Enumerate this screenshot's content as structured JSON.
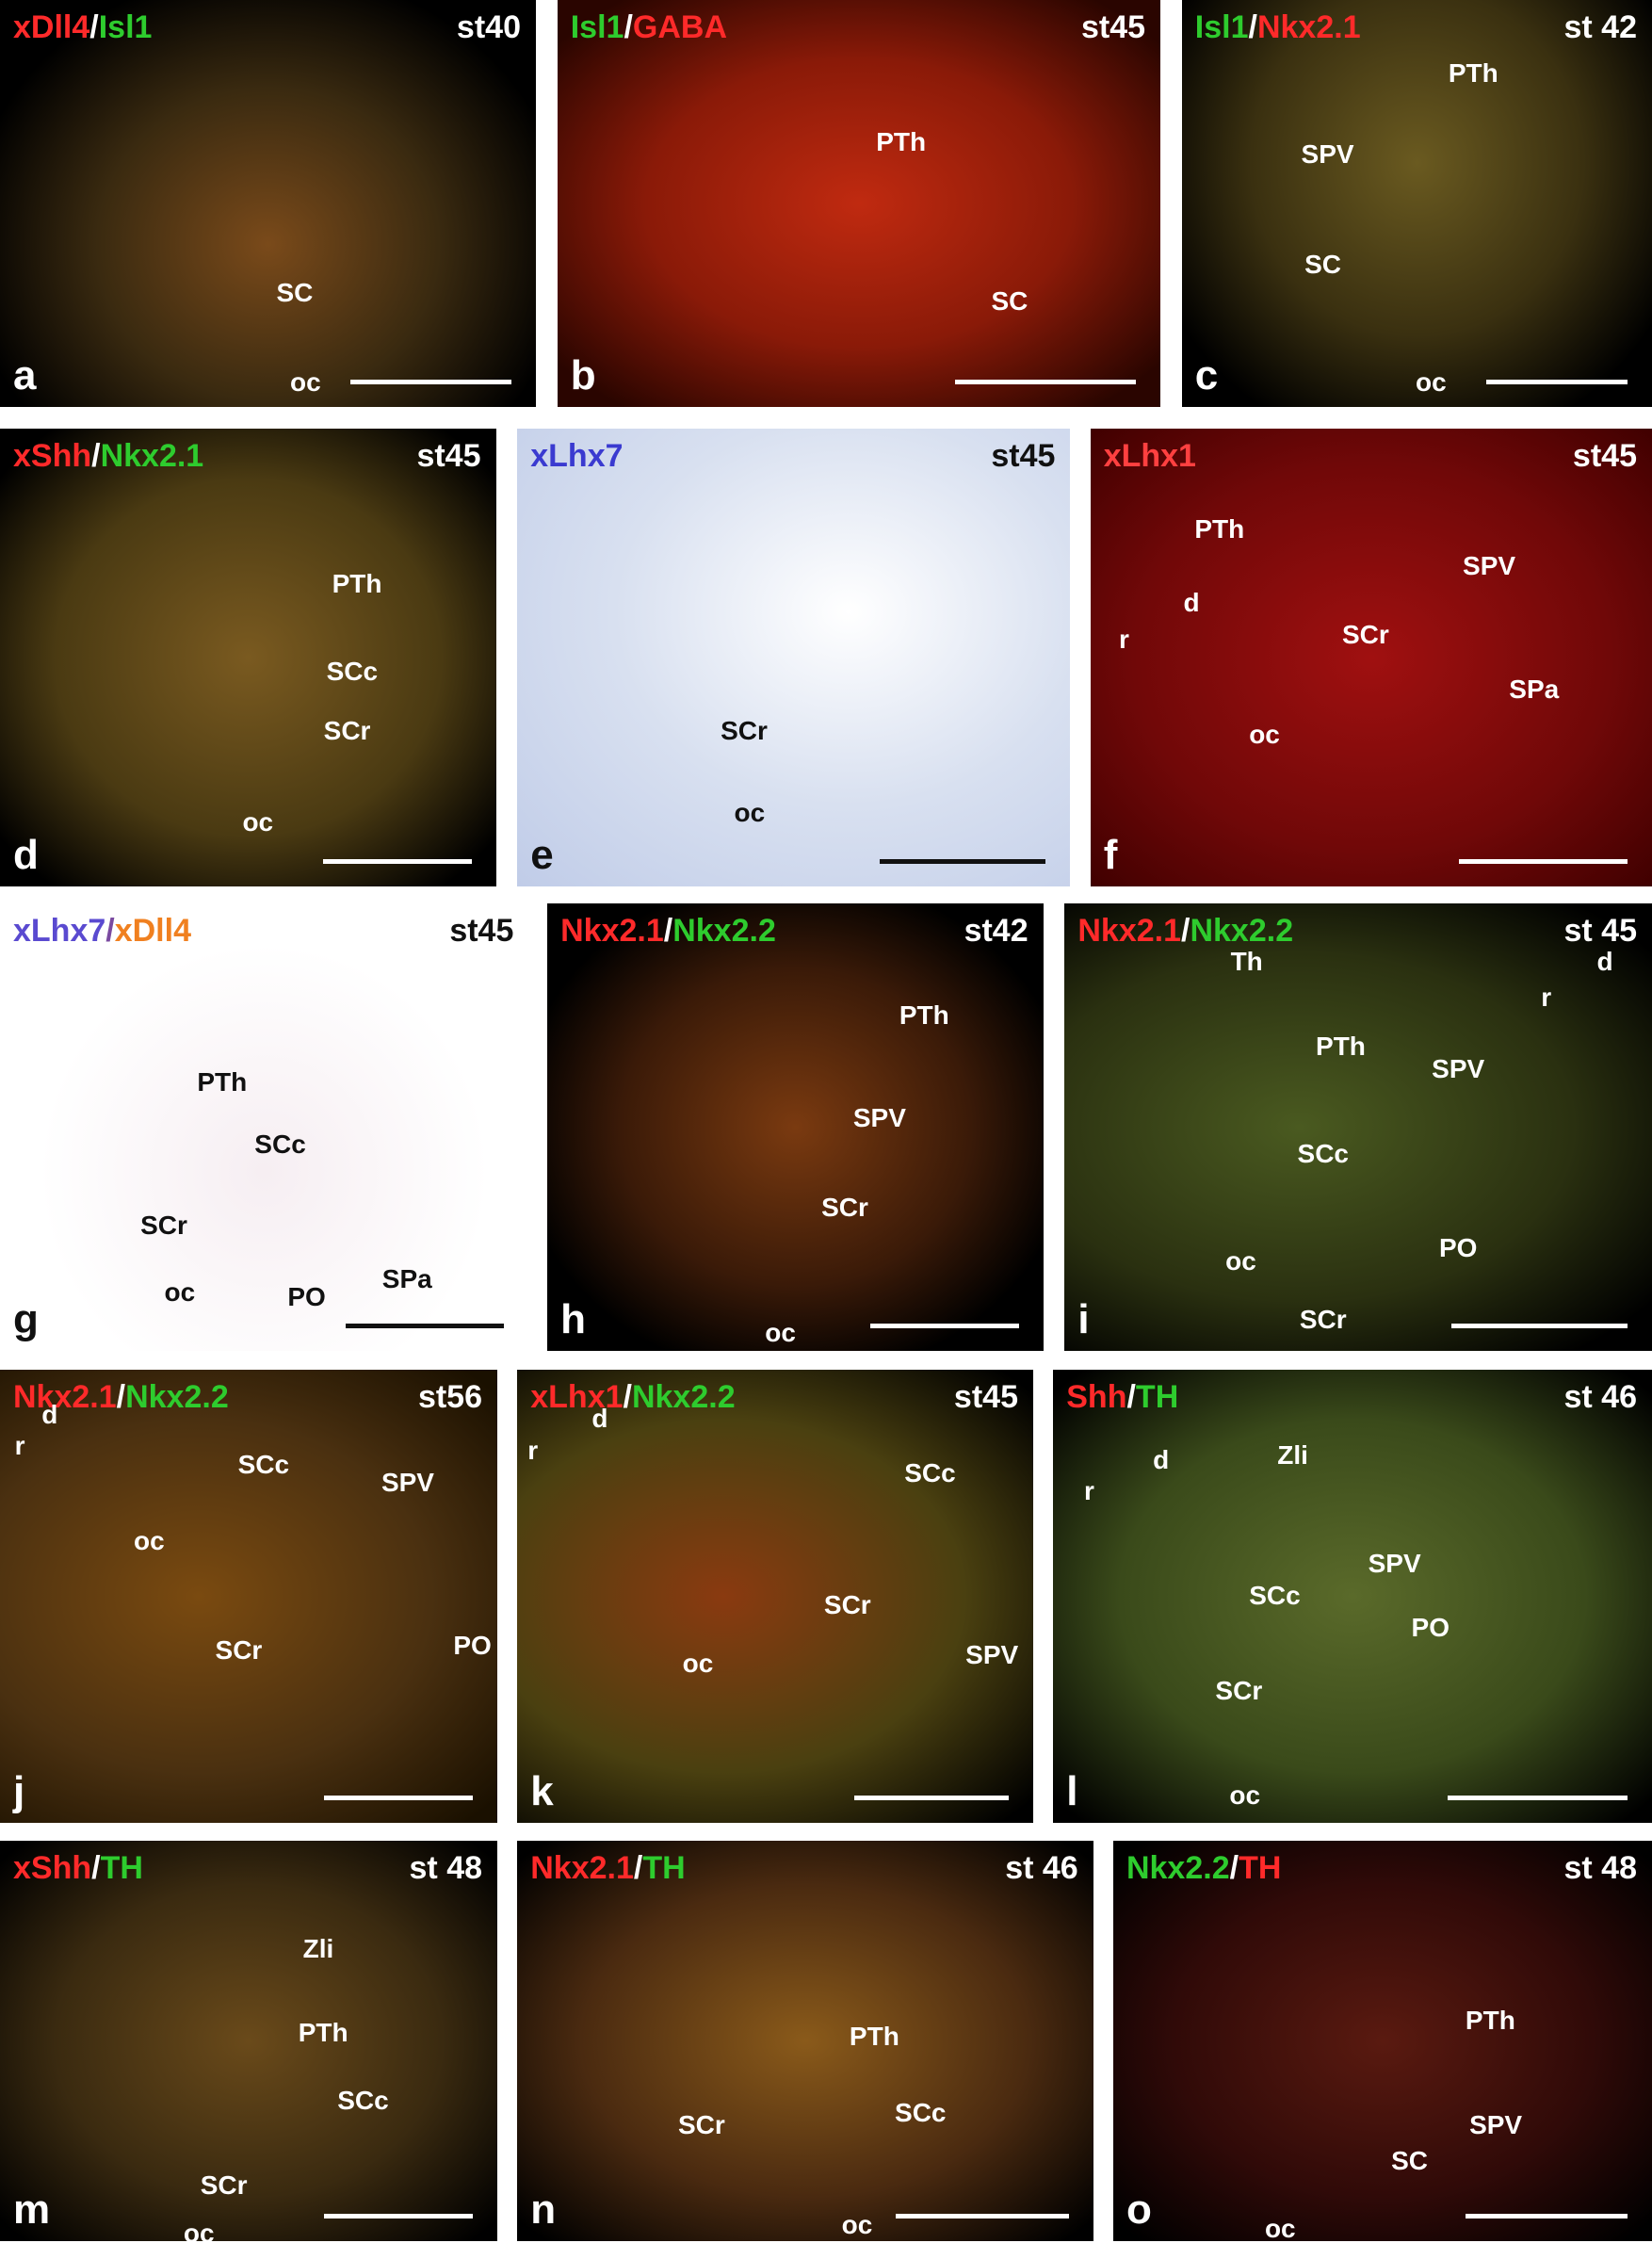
{
  "panels": [
    {
      "letter": "a",
      "stage": "st40",
      "title": [
        {
          "text": "xDll4",
          "color": "#ff2a2a"
        },
        {
          "text": "/",
          "color": "#ffffff"
        },
        {
          "text": "Isl1",
          "color": "#2ecc2e"
        }
      ],
      "labels": [
        "SC",
        "oc"
      ]
    },
    {
      "letter": "b",
      "stage": "st45",
      "title": [
        {
          "text": "Isl1",
          "color": "#2ecc2e"
        },
        {
          "text": "/",
          "color": "#ffffff"
        },
        {
          "text": "GABA",
          "color": "#ff2a2a"
        }
      ],
      "labels": [
        "PTh",
        "SC"
      ]
    },
    {
      "letter": "c",
      "stage": "st 42",
      "title": [
        {
          "text": "Isl1",
          "color": "#2ecc2e"
        },
        {
          "text": "/",
          "color": "#ffffff"
        },
        {
          "text": "Nkx2.1",
          "color": "#ff2a2a"
        }
      ],
      "labels": [
        "PTh",
        "SPV",
        "SC",
        "oc"
      ]
    },
    {
      "letter": "d",
      "stage": "st45",
      "title": [
        {
          "text": "xShh",
          "color": "#ff2a2a"
        },
        {
          "text": "/",
          "color": "#ffffff"
        },
        {
          "text": "Nkx2.1",
          "color": "#2ecc2e"
        }
      ],
      "labels": [
        "PTh",
        "SCc",
        "SCr",
        "oc"
      ]
    },
    {
      "letter": "e",
      "stage": "st45",
      "title": [
        {
          "text": "xLhx7",
          "color": "#3a3ad0"
        }
      ],
      "labels": [
        "SCr",
        "oc"
      ]
    },
    {
      "letter": "f",
      "stage": "st45",
      "title": [
        {
          "text": "xLhx1",
          "color": "#ff4040"
        }
      ],
      "labels": [
        "PTh",
        "SPV",
        "SCr",
        "SPa",
        "oc",
        "d",
        "r"
      ]
    },
    {
      "letter": "g",
      "stage": "st45",
      "title": [
        {
          "text": "xLhx7",
          "color": "#5a4ad0"
        },
        {
          "text": "/",
          "color": "#7a4aa0"
        },
        {
          "text": "xDll4",
          "color": "#f08020"
        }
      ],
      "labels": [
        "PTh",
        "SCc",
        "SCr",
        "oc",
        "PO",
        "SPa"
      ]
    },
    {
      "letter": "h",
      "stage": "st42",
      "title": [
        {
          "text": "Nkx2.1",
          "color": "#ff2a2a"
        },
        {
          "text": "/",
          "color": "#ffffff"
        },
        {
          "text": "Nkx2.2",
          "color": "#2ecc2e"
        }
      ],
      "labels": [
        "PTh",
        "SPV",
        "SCr",
        "oc"
      ]
    },
    {
      "letter": "i",
      "stage": "st 45",
      "title": [
        {
          "text": "Nkx2.1",
          "color": "#ff2a2a"
        },
        {
          "text": "/",
          "color": "#ffffff"
        },
        {
          "text": "Nkx2.2",
          "color": "#2ecc2e"
        }
      ],
      "labels": [
        "Th",
        "PTh",
        "SPV",
        "SCc",
        "oc",
        "PO",
        "SCr",
        "d",
        "r"
      ]
    },
    {
      "letter": "j",
      "stage": "st56",
      "title": [
        {
          "text": "Nkx2.1",
          "color": "#ff2a2a"
        },
        {
          "text": "/",
          "color": "#ffffff"
        },
        {
          "text": "Nkx2.2",
          "color": "#2ecc2e"
        }
      ],
      "labels": [
        "SCc",
        "SPV",
        "oc",
        "SCr",
        "PO",
        "d",
        "r"
      ]
    },
    {
      "letter": "k",
      "stage": "st45",
      "title": [
        {
          "text": "xLhx1",
          "color": "#ff2a2a"
        },
        {
          "text": "/",
          "color": "#ffffff"
        },
        {
          "text": "Nkx2.2",
          "color": "#2ecc2e"
        }
      ],
      "labels": [
        "SCc",
        "SCr",
        "oc",
        "SPV",
        "d",
        "r"
      ]
    },
    {
      "letter": "l",
      "stage": "st 46",
      "title": [
        {
          "text": "Shh",
          "color": "#ff2a2a"
        },
        {
          "text": "/",
          "color": "#ffffff"
        },
        {
          "text": "TH",
          "color": "#2ecc2e"
        }
      ],
      "labels": [
        "Zli",
        "SPV",
        "SCc",
        "PO",
        "SCr",
        "oc",
        "d",
        "r"
      ]
    },
    {
      "letter": "m",
      "stage": "st 48",
      "title": [
        {
          "text": "xShh",
          "color": "#ff2a2a"
        },
        {
          "text": "/",
          "color": "#ffffff"
        },
        {
          "text": "TH",
          "color": "#2ecc2e"
        }
      ],
      "labels": [
        "Zli",
        "PTh",
        "SCc",
        "SCr",
        "oc"
      ]
    },
    {
      "letter": "n",
      "stage": "st 46",
      "title": [
        {
          "text": "Nkx2.1",
          "color": "#ff2a2a"
        },
        {
          "text": "/",
          "color": "#ffffff"
        },
        {
          "text": "TH",
          "color": "#2ecc2e"
        }
      ],
      "labels": [
        "PTh",
        "SCc",
        "SCr",
        "oc"
      ]
    },
    {
      "letter": "o",
      "stage": "st 48",
      "title": [
        {
          "text": "Nkx2.2",
          "color": "#2ecc2e"
        },
        {
          "text": "/",
          "color": "#ffffff"
        },
        {
          "text": "TH",
          "color": "#ff2a2a"
        }
      ],
      "labels": [
        "PTh",
        "SPV",
        "SC",
        "oc"
      ]
    }
  ]
}
